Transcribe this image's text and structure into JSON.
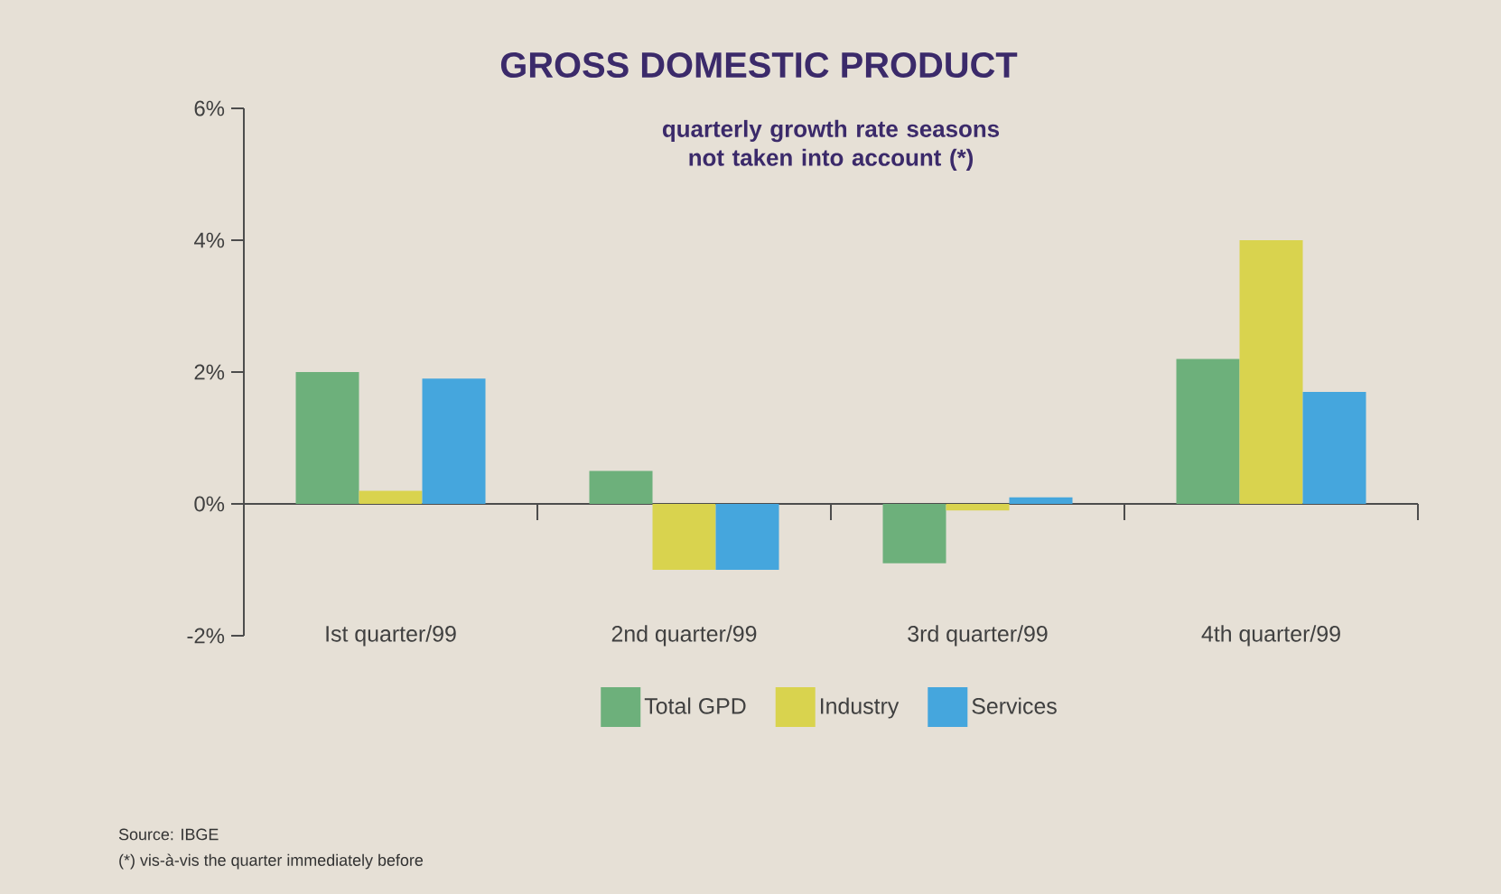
{
  "chart_data": {
    "type": "bar",
    "title": "GROSS DOMESTIC PRODUCT",
    "subtitle": "quarterly growth rate seasons not taken into account (*)",
    "categories": [
      "Ist quarter/99",
      "2nd quarter/99",
      "3rd quarter/99",
      "4th quarter/99"
    ],
    "series": [
      {
        "name": "Total GPD",
        "color": "#6db07b",
        "values": [
          2.0,
          0.5,
          -0.9,
          2.2
        ]
      },
      {
        "name": "Industry",
        "color": "#d9d34e",
        "values": [
          0.2,
          -1.0,
          -0.1,
          4.0
        ]
      },
      {
        "name": "Services",
        "color": "#45a6dd",
        "values": [
          1.9,
          -1.0,
          0.1,
          1.7
        ]
      }
    ],
    "ylim": [
      -2,
      6
    ],
    "yticks": [
      {
        "value": -2,
        "label": "-2%"
      },
      {
        "value": 0,
        "label": "0%"
      },
      {
        "value": 2,
        "label": "2%"
      },
      {
        "value": 4,
        "label": "4%"
      },
      {
        "value": 6,
        "label": "6%"
      }
    ],
    "legend": "bottom",
    "annotations": [
      "Source: IBGE",
      "(*) vis-à-vis the quarter immediately before"
    ]
  }
}
